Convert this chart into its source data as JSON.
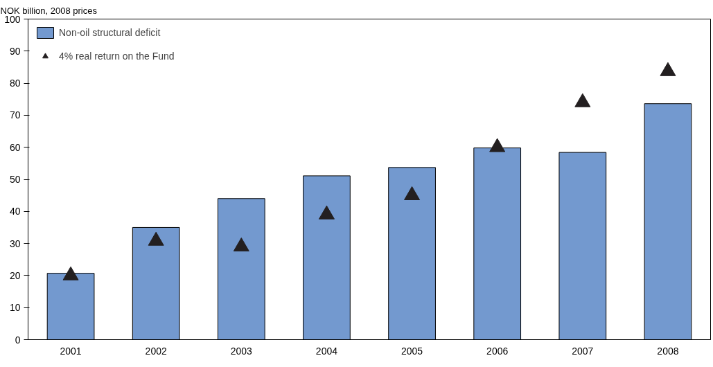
{
  "chart_data": {
    "type": "bar",
    "ylabel": "NOK billion, 2008 prices",
    "categories": [
      "2001",
      "2002",
      "2003",
      "2004",
      "2005",
      "2006",
      "2007",
      "2008"
    ],
    "series": [
      {
        "name": "Non-oil structural deficit",
        "color": "#7399cf",
        "values": [
          20.7,
          35.0,
          44.0,
          51.1,
          53.7,
          59.8,
          58.4,
          73.6
        ]
      },
      {
        "name": "4% real return on the Fund",
        "type": "scatter",
        "marker": "triangle",
        "color": "#231f20",
        "values": [
          20.0,
          30.8,
          29.0,
          39.0,
          45.0,
          60.0,
          74.0,
          83.7
        ]
      }
    ],
    "ylim": [
      0,
      100
    ],
    "yticks": [
      0,
      10,
      20,
      30,
      40,
      50,
      60,
      70,
      80,
      90,
      100
    ],
    "grid": false,
    "legend": "top left"
  }
}
